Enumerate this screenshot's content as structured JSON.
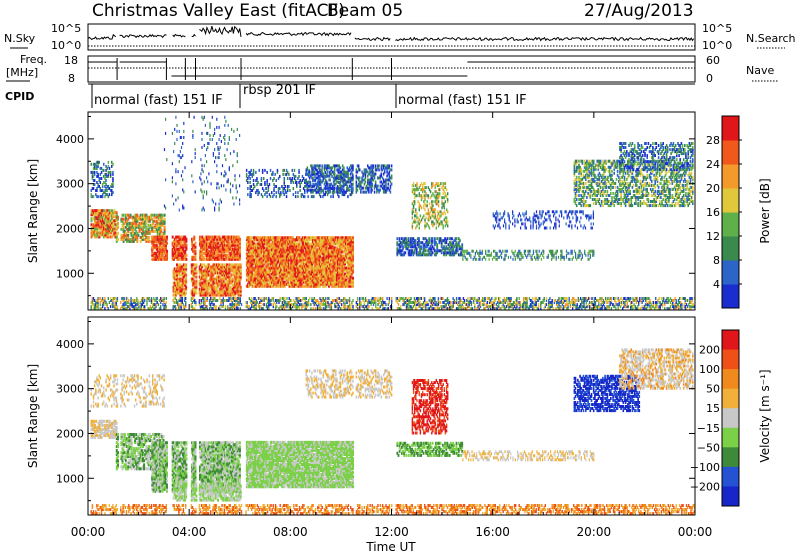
{
  "header": {
    "title": "Christmas Valley East (fitACF)",
    "beam": "Beam 05",
    "date": "27/Aug/2013"
  },
  "params": {
    "nsky_label": "N.Sky",
    "nsearch_label": "N.Search",
    "noise_ticks": [
      "10^5",
      "10^0"
    ],
    "freq_label_1": "Freq.",
    "freq_label_2": "[MHz]",
    "freq_ticks": [
      "18",
      "8"
    ],
    "nave_label": "Nave",
    "nave_ticks": [
      "60",
      "0"
    ],
    "cpid_label": "CPID",
    "cpid_segments": [
      {
        "start": 0,
        "end": 6.1,
        "label": "normal (fast) 151 IF"
      },
      {
        "start": 6.1,
        "end": 12.1,
        "label": "rbsp 201 IF"
      },
      {
        "start": 12.1,
        "end": 24,
        "label": "normal (fast) 151 IF"
      }
    ]
  },
  "chart_data": [
    {
      "type": "heatmap",
      "name": "power-panel",
      "ylabel": "Slant Range [km]",
      "yticks": [
        1000,
        2000,
        3000,
        4000
      ],
      "ylim": [
        180,
        4600
      ],
      "colorbar_label": "Power [dB]",
      "colorbar_ticks": [
        "4",
        "8",
        "12",
        "16",
        "20",
        "24",
        "28"
      ],
      "colors": [
        "#1a2ecf",
        "#2d64c8",
        "#3a8a4e",
        "#5fb04a",
        "#e0c83a",
        "#f39a2a",
        "#f0581c",
        "#e0161a"
      ]
    },
    {
      "type": "heatmap",
      "name": "velocity-panel",
      "ylabel": "Slant Range [km]",
      "yticks": [
        1000,
        2000,
        3000,
        4000
      ],
      "ylim": [
        180,
        4600
      ],
      "colorbar_label": "Velocity [m s⁻¹]",
      "colorbar_ticks": [
        "200",
        "100",
        "50",
        "15",
        "−15",
        "−50",
        "−100",
        "−200"
      ],
      "colors": [
        "#1626c8",
        "#2452d2",
        "#3f8a3a",
        "#7bd048",
        "#c8c8c8",
        "#f0b03a",
        "#f08a1c",
        "#ee5018",
        "#e0161a"
      ]
    }
  ],
  "xaxis": {
    "label": "Time UT",
    "ticks": [
      "00:00",
      "04:00",
      "08:00",
      "12:00",
      "16:00",
      "20:00",
      "00:00"
    ],
    "range_hours": [
      0,
      24
    ]
  }
}
